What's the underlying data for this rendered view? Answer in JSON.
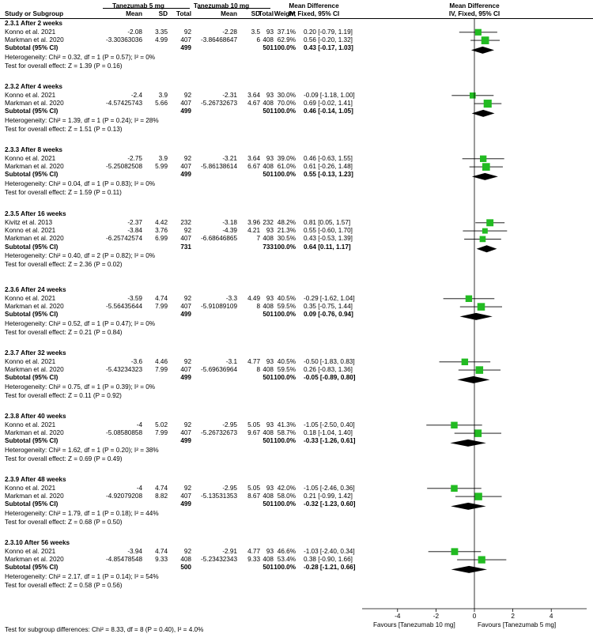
{
  "header": {
    "study": "Study or Subgroup",
    "group1": "Tanezumab 5 mg",
    "group2": "Tanezumab 10 mg",
    "mean": "Mean",
    "sd": "SD",
    "total": "Total",
    "weight": "Weight",
    "md_title": "Mean Difference",
    "md_sub": "IV, Fixed, 95% CI",
    "plot_title": "Mean Difference",
    "plot_sub": "IV, Fixed, 95% CI"
  },
  "axis": {
    "ticks": [
      "-4",
      "-2",
      "0",
      "2",
      "4"
    ],
    "left_label": "Favours [Tanezumab 10 mg]",
    "right_label": "Favours [Tanezumab 5 mg]"
  },
  "footer": "Test for subgroup differences: Chi² = 8.33, df = 8 (P = 0.40), I² = 4.0%",
  "chart_data": {
    "type": "forest",
    "xlim": [
      -6,
      6
    ],
    "x_ticks": [
      -4,
      -2,
      0,
      2,
      4
    ],
    "groups": [
      {
        "title": "2.3.1 After 2 weeks",
        "studies": [
          {
            "name": "Konno et al. 2021",
            "m1": "-2.08",
            "sd1": "3.35",
            "n1": "92",
            "m2": "-2.28",
            "sd2": "3.5",
            "n2": "93",
            "weight": "37.1%",
            "ci": "0.20 [-0.79, 1.19]",
            "md": 0.2,
            "lo": -0.79,
            "hi": 1.19,
            "w": 37.1
          },
          {
            "name": "Markman et al. 2020",
            "m1": "-3.30363036",
            "sd1": "4.99",
            "n1": "407",
            "m2": "-3.86468647",
            "sd2": "6",
            "n2": "408",
            "weight": "62.9%",
            "ci": "0.56 [-0.20, 1.32]",
            "md": 0.56,
            "lo": -0.2,
            "hi": 1.32,
            "w": 62.9
          }
        ],
        "subtotal": {
          "label": "Subtotal (95% CI)",
          "n1": "499",
          "n2": "501",
          "weight": "100.0%",
          "ci": "0.43 [-0.17, 1.03]",
          "md": 0.43,
          "lo": -0.17,
          "hi": 1.03
        },
        "heterogeneity": "Heterogeneity: Chi² = 0.32, df = 1 (P = 0.57); I² = 0%",
        "overall": "Test for overall effect: Z = 1.39 (P = 0.16)"
      },
      {
        "title": "2.3.2 After 4 weeks",
        "studies": [
          {
            "name": "Konno et al. 2021",
            "m1": "-2.4",
            "sd1": "3.9",
            "n1": "92",
            "m2": "-2.31",
            "sd2": "3.64",
            "n2": "93",
            "weight": "30.0%",
            "ci": "-0.09 [-1.18, 1.00]",
            "md": -0.09,
            "lo": -1.18,
            "hi": 1.0,
            "w": 30.0
          },
          {
            "name": "Markman et al. 2020",
            "m1": "-4.57425743",
            "sd1": "5.66",
            "n1": "407",
            "m2": "-5.26732673",
            "sd2": "4.67",
            "n2": "408",
            "weight": "70.0%",
            "ci": "0.69 [-0.02, 1.41]",
            "md": 0.69,
            "lo": -0.02,
            "hi": 1.41,
            "w": 70.0
          }
        ],
        "subtotal": {
          "label": "Subtotal (95% CI)",
          "n1": "499",
          "n2": "501",
          "weight": "100.0%",
          "ci": "0.46 [-0.14, 1.05]",
          "md": 0.46,
          "lo": -0.14,
          "hi": 1.05
        },
        "heterogeneity": "Heterogeneity: Chi² = 1.39, df = 1 (P = 0.24); I² = 28%",
        "overall": "Test for overall effect: Z = 1.51 (P = 0.13)"
      },
      {
        "title": "2.3.3 After 8 weeks",
        "studies": [
          {
            "name": "Konno et al. 2021",
            "m1": "-2.75",
            "sd1": "3.9",
            "n1": "92",
            "m2": "-3.21",
            "sd2": "3.64",
            "n2": "93",
            "weight": "39.0%",
            "ci": "0.46 [-0.63, 1.55]",
            "md": 0.46,
            "lo": -0.63,
            "hi": 1.55,
            "w": 39.0
          },
          {
            "name": "Markman et al. 2020",
            "m1": "-5.25082508",
            "sd1": "5.99",
            "n1": "407",
            "m2": "-5.86138614",
            "sd2": "6.67",
            "n2": "408",
            "weight": "61.0%",
            "ci": "0.61 [-0.26, 1.48]",
            "md": 0.61,
            "lo": -0.26,
            "hi": 1.48,
            "w": 61.0
          }
        ],
        "subtotal": {
          "label": "Subtotal (95% CI)",
          "n1": "499",
          "n2": "501",
          "weight": "100.0%",
          "ci": "0.55 [-0.13, 1.23]",
          "md": 0.55,
          "lo": -0.13,
          "hi": 1.23
        },
        "heterogeneity": "Heterogeneity: Chi² = 0.04, df = 1 (P = 0.83); I² = 0%",
        "overall": "Test for overall effect: Z = 1.59 (P = 0.11)"
      },
      {
        "title": "2.3.5 After 16 weeks",
        "studies": [
          {
            "name": "Kivitz et al. 2013",
            "m1": "-2.37",
            "sd1": "4.42",
            "n1": "232",
            "m2": "-3.18",
            "sd2": "3.96",
            "n2": "232",
            "weight": "48.2%",
            "ci": "0.81 [0.05, 1.57]",
            "md": 0.81,
            "lo": 0.05,
            "hi": 1.57,
            "w": 48.2
          },
          {
            "name": "Konno et al. 2021",
            "m1": "-3.84",
            "sd1": "3.76",
            "n1": "92",
            "m2": "-4.39",
            "sd2": "4.21",
            "n2": "93",
            "weight": "21.3%",
            "ci": "0.55 [-0.60, 1.70]",
            "md": 0.55,
            "lo": -0.6,
            "hi": 1.7,
            "w": 21.3
          },
          {
            "name": "Markman et al. 2020",
            "m1": "-6.25742574",
            "sd1": "6.99",
            "n1": "407",
            "m2": "-6.68646865",
            "sd2": "7",
            "n2": "408",
            "weight": "30.5%",
            "ci": "0.43 [-0.53, 1.39]",
            "md": 0.43,
            "lo": -0.53,
            "hi": 1.39,
            "w": 30.5
          }
        ],
        "subtotal": {
          "label": "Subtotal (95% CI)",
          "n1": "731",
          "n2": "733",
          "weight": "100.0%",
          "ci": "0.64 [0.11, 1.17]",
          "md": 0.64,
          "lo": 0.11,
          "hi": 1.17
        },
        "heterogeneity": "Heterogeneity: Chi² = 0.40, df = 2 (P = 0.82); I² = 0%",
        "overall": "Test for overall effect: Z = 2.36 (P = 0.02)"
      },
      {
        "title": "2.3.6 After 24 weeks",
        "studies": [
          {
            "name": "Konno et al. 2021",
            "m1": "-3.59",
            "sd1": "4.74",
            "n1": "92",
            "m2": "-3.3",
            "sd2": "4.49",
            "n2": "93",
            "weight": "40.5%",
            "ci": "-0.29 [-1.62, 1.04]",
            "md": -0.29,
            "lo": -1.62,
            "hi": 1.04,
            "w": 40.5
          },
          {
            "name": "Markman et al. 2020",
            "m1": "-5.56435644",
            "sd1": "7.99",
            "n1": "407",
            "m2": "-5.91089109",
            "sd2": "8",
            "n2": "408",
            "weight": "59.5%",
            "ci": "0.35 [-0.75, 1.44]",
            "md": 0.35,
            "lo": -0.75,
            "hi": 1.44,
            "w": 59.5
          }
        ],
        "subtotal": {
          "label": "Subtotal (95% CI)",
          "n1": "499",
          "n2": "501",
          "weight": "100.0%",
          "ci": "0.09 [-0.76, 0.94]",
          "md": 0.09,
          "lo": -0.76,
          "hi": 0.94
        },
        "heterogeneity": "Heterogeneity: Chi² = 0.52, df = 1 (P = 0.47); I² = 0%",
        "overall": "Test for overall effect: Z = 0.21 (P = 0.84)"
      },
      {
        "title": "2.3.7 After 32 weeks",
        "studies": [
          {
            "name": "Konno et al. 2021",
            "m1": "-3.6",
            "sd1": "4.46",
            "n1": "92",
            "m2": "-3.1",
            "sd2": "4.77",
            "n2": "93",
            "weight": "40.5%",
            "ci": "-0.50 [-1.83, 0.83]",
            "md": -0.5,
            "lo": -1.83,
            "hi": 0.83,
            "w": 40.5
          },
          {
            "name": "Markman et al. 2020",
            "m1": "-5.43234323",
            "sd1": "7.99",
            "n1": "407",
            "m2": "-5.69636964",
            "sd2": "8",
            "n2": "408",
            "weight": "59.5%",
            "ci": "0.26 [-0.83, 1.36]",
            "md": 0.26,
            "lo": -0.83,
            "hi": 1.36,
            "w": 59.5
          }
        ],
        "subtotal": {
          "label": "Subtotal (95% CI)",
          "n1": "499",
          "n2": "501",
          "weight": "100.0%",
          "ci": "-0.05 [-0.89, 0.80]",
          "md": -0.05,
          "lo": -0.89,
          "hi": 0.8
        },
        "heterogeneity": "Heterogeneity: Chi² = 0.75, df = 1 (P = 0.39); I² = 0%",
        "overall": "Test for overall effect: Z = 0.11 (P = 0.92)"
      },
      {
        "title": "2.3.8 After 40 weeks",
        "studies": [
          {
            "name": "Konno et al. 2021",
            "m1": "-4",
            "sd1": "5.02",
            "n1": "92",
            "m2": "-2.95",
            "sd2": "5.05",
            "n2": "93",
            "weight": "41.3%",
            "ci": "-1.05 [-2.50, 0.40]",
            "md": -1.05,
            "lo": -2.5,
            "hi": 0.4,
            "w": 41.3
          },
          {
            "name": "Markman et al. 2020",
            "m1": "-5.08580858",
            "sd1": "7.99",
            "n1": "407",
            "m2": "-5.26732673",
            "sd2": "9.67",
            "n2": "408",
            "weight": "58.7%",
            "ci": "0.18 [-1.04, 1.40]",
            "md": 0.18,
            "lo": -1.04,
            "hi": 1.4,
            "w": 58.7
          }
        ],
        "subtotal": {
          "label": "Subtotal (95% CI)",
          "n1": "499",
          "n2": "501",
          "weight": "100.0%",
          "ci": "-0.33 [-1.26, 0.61]",
          "md": -0.33,
          "lo": -1.26,
          "hi": 0.61
        },
        "heterogeneity": "Heterogeneity: Chi² = 1.62, df = 1 (P = 0.20); I² = 38%",
        "overall": "Test for overall effect: Z = 0.69 (P = 0.49)"
      },
      {
        "title": "2.3.9 After 48 weeks",
        "studies": [
          {
            "name": "Konno et al. 2021",
            "m1": "-4",
            "sd1": "4.74",
            "n1": "92",
            "m2": "-2.95",
            "sd2": "5.05",
            "n2": "93",
            "weight": "42.0%",
            "ci": "-1.05 [-2.46, 0.36]",
            "md": -1.05,
            "lo": -2.46,
            "hi": 0.36,
            "w": 42.0
          },
          {
            "name": "Markman et al. 2020",
            "m1": "-4.92079208",
            "sd1": "8.82",
            "n1": "407",
            "m2": "-5.13531353",
            "sd2": "8.67",
            "n2": "408",
            "weight": "58.0%",
            "ci": "0.21 [-0.99, 1.42]",
            "md": 0.21,
            "lo": -0.99,
            "hi": 1.42,
            "w": 58.0
          }
        ],
        "subtotal": {
          "label": "Subtotal (95% CI)",
          "n1": "499",
          "n2": "501",
          "weight": "100.0%",
          "ci": "-0.32 [-1.23, 0.60]",
          "md": -0.32,
          "lo": -1.23,
          "hi": 0.6
        },
        "heterogeneity": "Heterogeneity: Chi² = 1.79, df = 1 (P = 0.18); I² = 44%",
        "overall": "Test for overall effect: Z = 0.68 (P = 0.50)"
      },
      {
        "title": "2.3.10 After 56 weeks",
        "studies": [
          {
            "name": "Konno et al. 2021",
            "m1": "-3.94",
            "sd1": "4.74",
            "n1": "92",
            "m2": "-2.91",
            "sd2": "4.77",
            "n2": "93",
            "weight": "46.6%",
            "ci": "-1.03 [-2.40, 0.34]",
            "md": -1.03,
            "lo": -2.4,
            "hi": 0.34,
            "w": 46.6
          },
          {
            "name": "Markman et al. 2020",
            "m1": "-4.85478548",
            "sd1": "9.33",
            "n1": "408",
            "m2": "-5.23432343",
            "sd2": "9.33",
            "n2": "408",
            "weight": "53.4%",
            "ci": "0.38 [-0.90, 1.66]",
            "md": 0.38,
            "lo": -0.9,
            "hi": 1.66,
            "w": 53.4
          }
        ],
        "subtotal": {
          "label": "Subtotal (95% CI)",
          "n1": "500",
          "n2": "501",
          "weight": "100.0%",
          "ci": "-0.28 [-1.21, 0.66]",
          "md": -0.28,
          "lo": -1.21,
          "hi": 0.66
        },
        "heterogeneity": "Heterogeneity: Chi² = 2.17, df = 1 (P = 0.14); I² = 54%",
        "overall": "Test for overall effect: Z = 0.58 (P = 0.56)"
      }
    ],
    "colors": {
      "square": "#22bb22",
      "diamond": "#000000"
    }
  }
}
